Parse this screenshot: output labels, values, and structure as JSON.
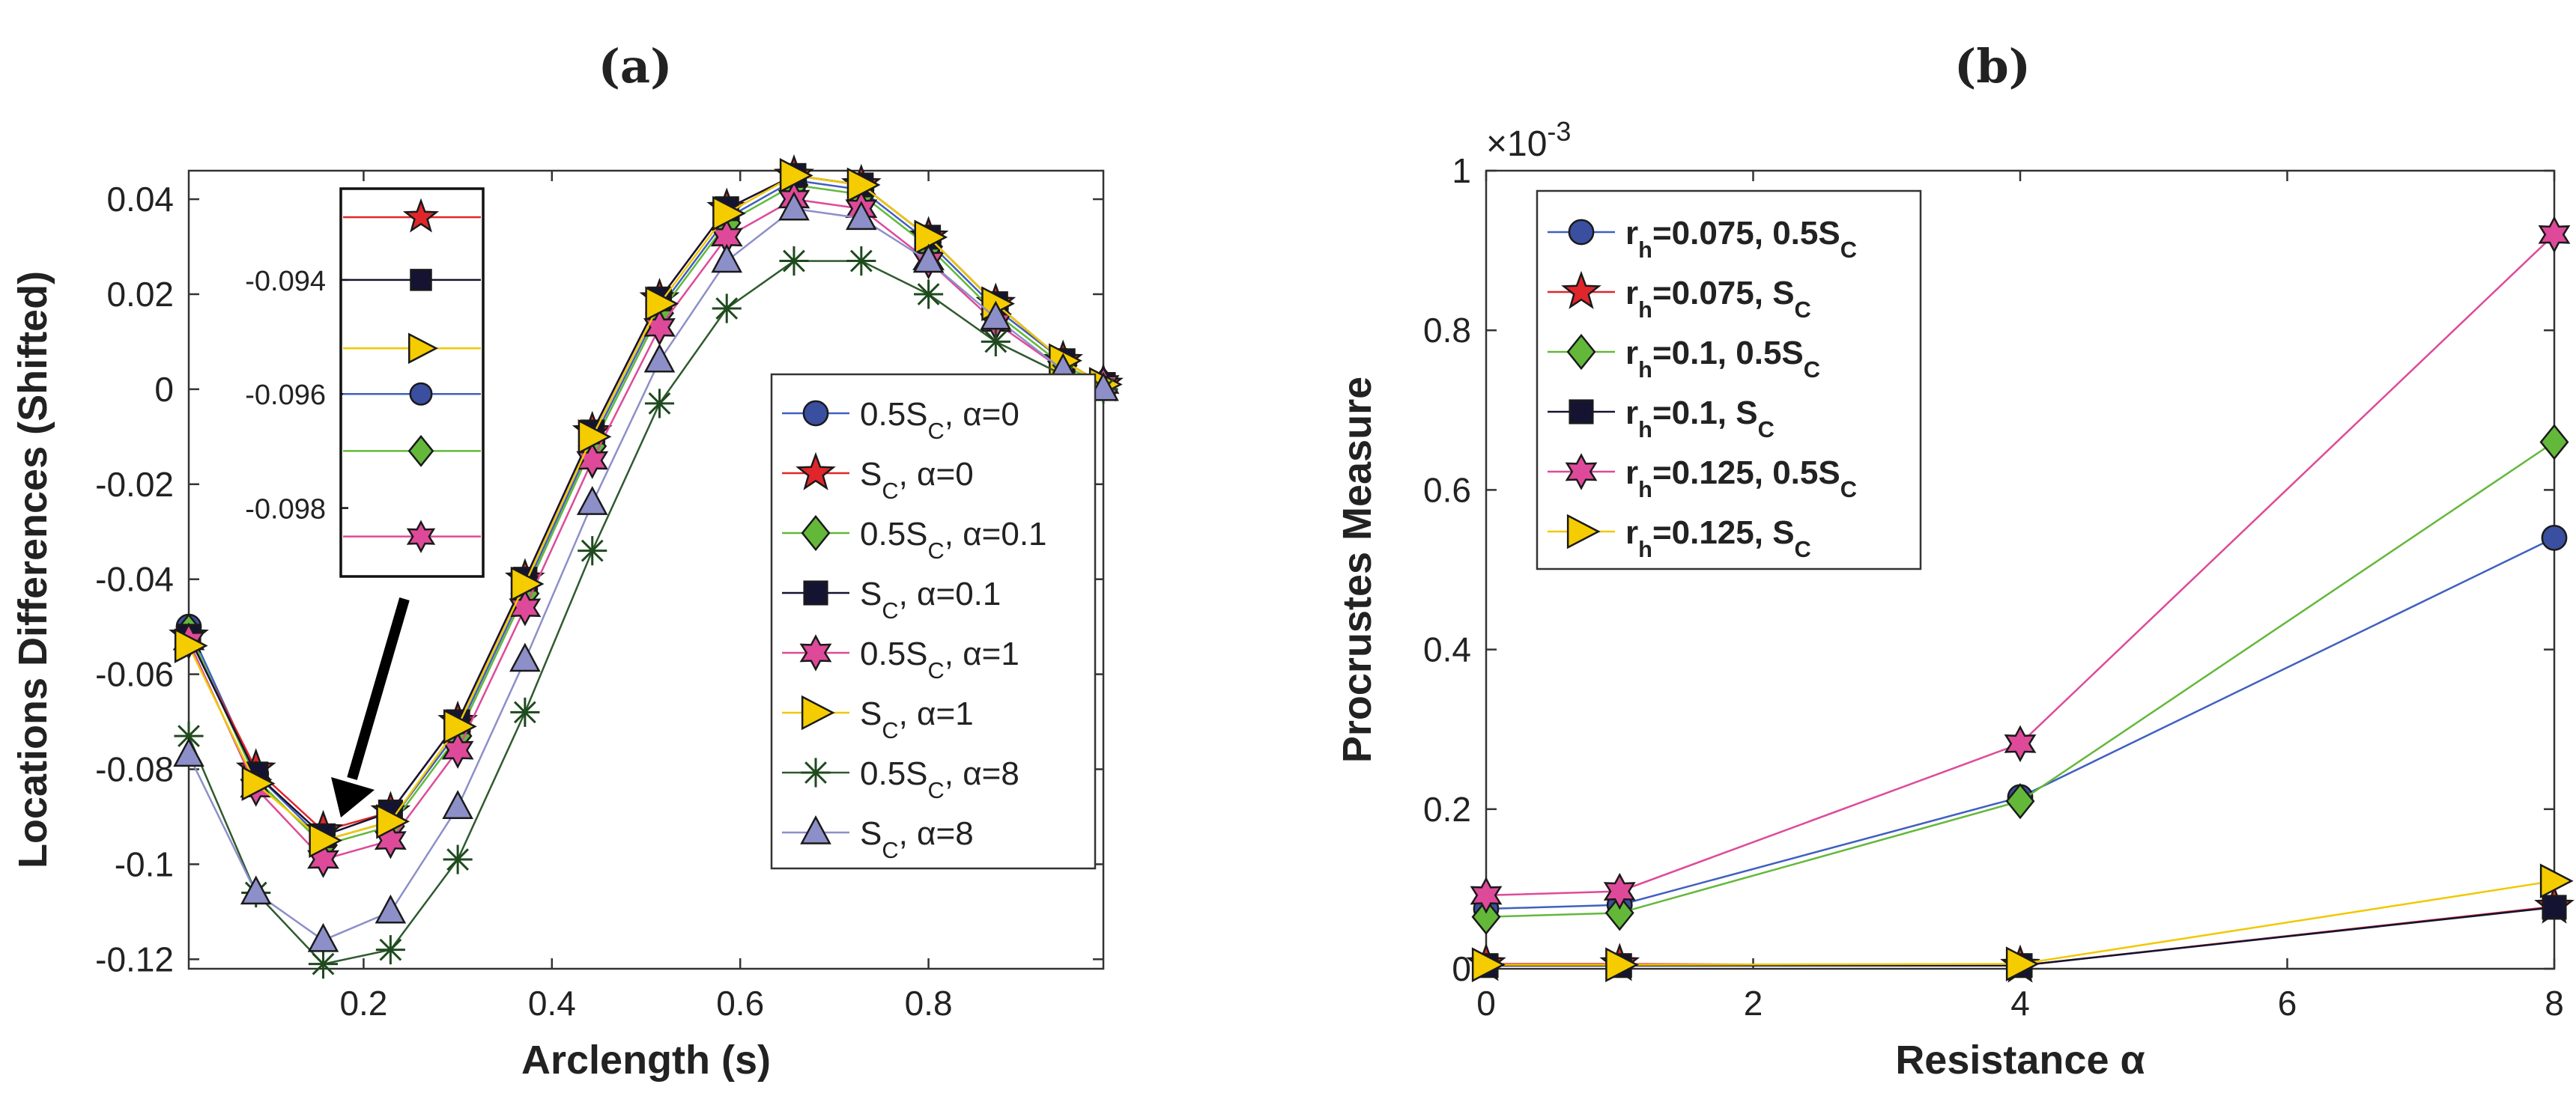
{
  "chart_data": [
    {
      "panel_label": "(a)",
      "type": "line",
      "xlabel": "Arclength (s)",
      "ylabel": "Locations Differences (Shifted)",
      "xlim": [
        0.0143,
        0.9857
      ],
      "ylim": [
        -0.122,
        0.046
      ],
      "xticks": [
        0.2,
        0.4,
        0.6,
        0.8
      ],
      "xtick_labels": [
        "0.2",
        "0.4",
        "0.6",
        "0.8"
      ],
      "yticks": [
        0.04,
        0.02,
        0,
        -0.02,
        -0.04,
        -0.06,
        -0.08,
        -0.1,
        -0.12
      ],
      "ytick_labels": [
        "0.04",
        "0.02",
        "0",
        "-0.02",
        "-0.04",
        "-0.06",
        "-0.08",
        "-0.1",
        "-0.12"
      ],
      "grid": false,
      "legend_position": "right",
      "x": [
        0.0143,
        0.0857,
        0.1571,
        0.2286,
        0.3,
        0.3714,
        0.4429,
        0.5143,
        0.5857,
        0.6571,
        0.7286,
        0.8,
        0.8714,
        0.9429,
        0.9857
      ],
      "series": [
        {
          "name": "0.5S_C, α=0",
          "legend_text": "0.5S",
          "legend_sub": "C",
          "legend_suffix": ", α=0",
          "marker": "circle",
          "color": "#3a4fa0",
          "line": "#4060c0",
          "values": [
            -0.05,
            -0.081,
            -0.095,
            -0.091,
            -0.072,
            -0.042,
            -0.011,
            0.017,
            0.036,
            0.044,
            0.042,
            0.031,
            0.017,
            0.006,
            0.001
          ]
        },
        {
          "name": "S_C, α=0",
          "legend_text": "S",
          "legend_sub": "C",
          "legend_suffix": ", α=0",
          "marker": "star5",
          "color": "#e0262b",
          "line": "#e0262b",
          "values": [
            -0.052,
            -0.08,
            -0.093,
            -0.089,
            -0.07,
            -0.04,
            -0.009,
            0.019,
            0.038,
            0.045,
            0.043,
            0.032,
            0.018,
            0.006,
            0.001
          ]
        },
        {
          "name": "0.5S_C, α=0.1",
          "legend_text": "0.5S",
          "legend_sub": "C",
          "legend_suffix": ", α=0.1",
          "marker": "diamond",
          "color": "#63b83a",
          "line": "#63b83a",
          "values": [
            -0.051,
            -0.082,
            -0.096,
            -0.092,
            -0.073,
            -0.043,
            -0.012,
            0.016,
            0.035,
            0.043,
            0.041,
            0.03,
            0.016,
            0.005,
            0.001
          ]
        },
        {
          "name": "S_C, α=0.1",
          "legend_text": "S",
          "legend_sub": "C",
          "legend_suffix": ", α=0.1",
          "marker": "square",
          "color": "#141432",
          "line": "#141432",
          "values": [
            -0.052,
            -0.081,
            -0.094,
            -0.089,
            -0.07,
            -0.04,
            -0.009,
            0.019,
            0.038,
            0.045,
            0.043,
            0.032,
            0.018,
            0.006,
            0.001
          ]
        },
        {
          "name": "0.5S_C, α=1",
          "legend_text": "0.5S",
          "legend_sub": "C",
          "legend_suffix": ", α=1",
          "marker": "star6",
          "color": "#de4a99",
          "line": "#de4a99",
          "values": [
            -0.053,
            -0.084,
            -0.099,
            -0.095,
            -0.076,
            -0.046,
            -0.015,
            0.013,
            0.032,
            0.04,
            0.038,
            0.027,
            0.014,
            0.004,
            0.001
          ]
        },
        {
          "name": "S_C, α=1",
          "legend_text": "S",
          "legend_sub": "C",
          "legend_suffix": ", α=1",
          "marker": "triangle-right",
          "color": "#f5cc00",
          "line": "#f0c800",
          "values": [
            -0.054,
            -0.083,
            -0.095,
            -0.091,
            -0.071,
            -0.041,
            -0.01,
            0.018,
            0.037,
            0.045,
            0.043,
            0.032,
            0.018,
            0.006,
            0.001
          ]
        },
        {
          "name": "0.5S_C, α=8",
          "legend_text": "0.5S",
          "legend_sub": "C",
          "legend_suffix": ", α=8",
          "marker": "asterisk",
          "color": "#1e4a1e",
          "line": "#2f5a2f",
          "values": [
            -0.073,
            -0.106,
            -0.121,
            -0.118,
            -0.099,
            -0.068,
            -0.034,
            -0.003,
            0.017,
            0.027,
            0.027,
            0.02,
            0.01,
            0.003,
            0.0
          ]
        },
        {
          "name": "S_C, α=8",
          "legend_text": "S",
          "legend_sub": "C",
          "legend_suffix": ", α=8",
          "marker": "triangle-up",
          "color": "#8d8fc8",
          "line": "#8d8fc8",
          "values": [
            -0.077,
            -0.106,
            -0.116,
            -0.11,
            -0.088,
            -0.057,
            -0.024,
            0.006,
            0.027,
            0.038,
            0.036,
            0.027,
            0.015,
            0.004,
            0.0
          ]
        }
      ],
      "inset": {
        "ylim": [
          -0.0992,
          -0.0924
        ],
        "ytick_labels": [
          "-0.094",
          "-0.096",
          "-0.098"
        ],
        "yticks": [
          -0.094,
          -0.096,
          -0.098
        ],
        "order": [
          1,
          3,
          5,
          0,
          2,
          4
        ],
        "values": [
          -0.0929,
          -0.094,
          -0.0952,
          -0.096,
          -0.097,
          -0.0985
        ]
      }
    },
    {
      "panel_label": "(b)",
      "type": "line",
      "xlabel": "Resistance α",
      "ylabel": "Procrustes Measure",
      "exponent_label": "×10",
      "exponent_power": "-3",
      "xlim": [
        0,
        8
      ],
      "ylim": [
        0,
        1
      ],
      "xticks": [
        0,
        2,
        4,
        6,
        8
      ],
      "xtick_labels": [
        "0",
        "2",
        "4",
        "6",
        "8"
      ],
      "yticks": [
        0,
        0.2,
        0.4,
        0.6,
        0.8,
        1
      ],
      "ytick_labels": [
        "0",
        "0.2",
        "0.4",
        "0.6",
        "0.8",
        "1"
      ],
      "grid": false,
      "legend_position": "top-left",
      "x": [
        0,
        1,
        4,
        8
      ],
      "series": [
        {
          "name": "r_h=0.075, 0.5S_C",
          "legend_text": "r",
          "legend_sub": "h",
          "legend_mid": "=0.075, 0.5S",
          "legend_sub2": "C",
          "marker": "circle",
          "color": "#3a4fa0",
          "line": "#4060c0",
          "values": [
            0.075,
            0.08,
            0.215,
            0.54
          ]
        },
        {
          "name": "r_h=0.075, S_C",
          "legend_text": "r",
          "legend_sub": "h",
          "legend_mid": "=0.075, S",
          "legend_sub2": "C",
          "marker": "star5",
          "color": "#e0262b",
          "line": "#e0262b",
          "values": [
            0.006,
            0.006,
            0.004,
            0.078
          ]
        },
        {
          "name": "r_h=0.1, 0.5S_C",
          "legend_text": "r",
          "legend_sub": "h",
          "legend_mid": "=0.1, 0.5S",
          "legend_sub2": "C",
          "marker": "diamond",
          "color": "#63b83a",
          "line": "#63b83a",
          "values": [
            0.065,
            0.07,
            0.21,
            0.66
          ]
        },
        {
          "name": "r_h=0.1, S_C",
          "legend_text": "r",
          "legend_sub": "h",
          "legend_mid": "=0.1, S",
          "legend_sub2": "C",
          "marker": "square",
          "color": "#141432",
          "line": "#141432",
          "values": [
            0.004,
            0.004,
            0.004,
            0.077
          ]
        },
        {
          "name": "r_h=0.125, 0.5S_C",
          "legend_text": "r",
          "legend_sub": "h",
          "legend_mid": "=0.125, 0.5S",
          "legend_sub2": "C",
          "marker": "star6",
          "color": "#de4a99",
          "line": "#de4a99",
          "values": [
            0.092,
            0.097,
            0.282,
            0.92
          ]
        },
        {
          "name": "r_h=0.125, S_C",
          "legend_text": "r",
          "legend_sub": "h",
          "legend_mid": "=0.125, S",
          "legend_sub2": "C",
          "marker": "triangle-right",
          "color": "#f5cc00",
          "line": "#f0c800",
          "values": [
            0.005,
            0.005,
            0.006,
            0.11
          ]
        }
      ]
    }
  ]
}
